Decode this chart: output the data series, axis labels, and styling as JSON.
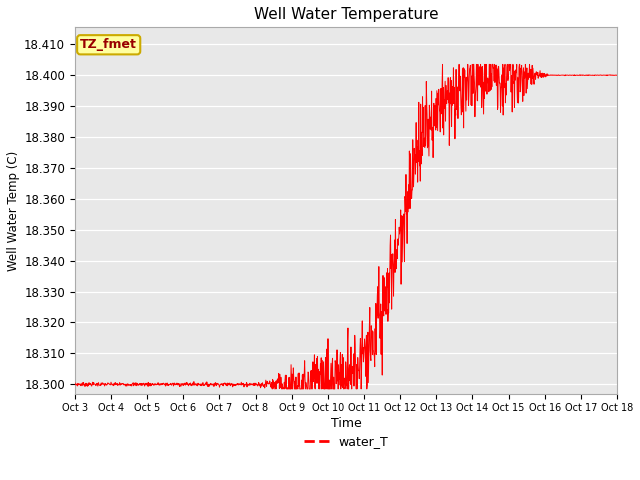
{
  "title": "Well Water Temperature",
  "xlabel": "Time",
  "ylabel": "Well Water Temp (C)",
  "legend_label": "water_T",
  "tz_label": "TZ_fmet",
  "line_color": "#FF0000",
  "bg_color": "#E8E8E8",
  "ylim": [
    18.297,
    18.4155
  ],
  "yticks": [
    18.3,
    18.31,
    18.32,
    18.33,
    18.34,
    18.35,
    18.36,
    18.37,
    18.38,
    18.39,
    18.4,
    18.41
  ],
  "x_tick_labels": [
    "Oct 3",
    "Oct 4",
    "Oct 5",
    "Oct 6",
    "Oct 7",
    "Oct 8",
    "Oct 9",
    "Oct 10",
    "Oct 11",
    "Oct 12",
    "Oct 13",
    "Oct 14",
    "Oct 15",
    "Oct 16",
    "Oct 17",
    "Oct 18"
  ],
  "figsize": [
    6.4,
    4.8
  ],
  "dpi": 100,
  "tz_text_color": "#990000",
  "tz_face_color": "#FFFFA0",
  "tz_edge_color": "#CCAA00"
}
